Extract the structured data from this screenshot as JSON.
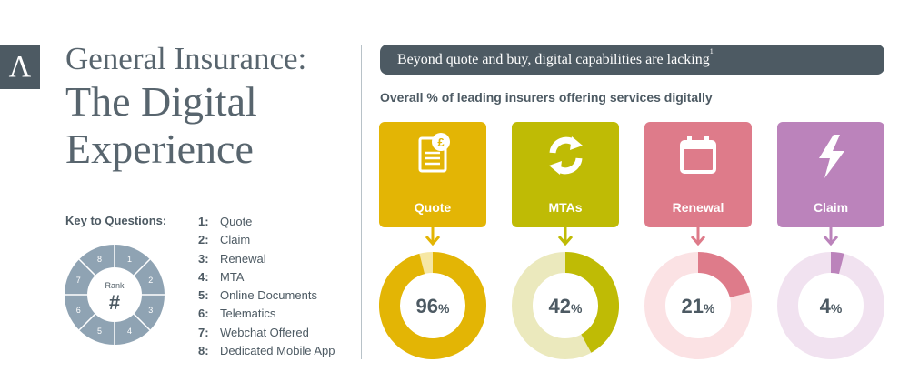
{
  "logo": {
    "glyph": "Λ"
  },
  "title": {
    "line1": "General Insurance:",
    "line2": "The Digital",
    "line3": "Experience"
  },
  "key": {
    "title": "Key to Questions:",
    "wheel": {
      "center_label": "Rank",
      "center_symbol": "#",
      "segments": [
        "1",
        "2",
        "3",
        "4",
        "5",
        "6",
        "7",
        "8"
      ],
      "color": "#8fa3b3"
    },
    "items": [
      {
        "num": "1:",
        "label": "Quote"
      },
      {
        "num": "2:",
        "label": "Claim"
      },
      {
        "num": "3:",
        "label": "Renewal"
      },
      {
        "num": "4:",
        "label": "MTA"
      },
      {
        "num": "5:",
        "label": "Online Documents"
      },
      {
        "num": "6:",
        "label": "Telematics"
      },
      {
        "num": "7:",
        "label": "Webchat Offered"
      },
      {
        "num": "8:",
        "label": "Dedicated Mobile App"
      }
    ]
  },
  "banner": {
    "text": "Beyond quote and buy, digital capabilities are lacking",
    "footnote": "1"
  },
  "chart_data": {
    "type": "pie",
    "title": "Overall % of leading insurers offering services digitally",
    "unit": "%",
    "categories": [
      "Quote",
      "MTAs",
      "Renewal",
      "Claim"
    ],
    "values": [
      96,
      42,
      21,
      4
    ],
    "colors": [
      {
        "main": "#e3b505",
        "track": "#f6e7a4",
        "icon": "document-pound-icon"
      },
      {
        "main": "#bfbb05",
        "track": "#ebe9bd",
        "icon": "refresh-icon"
      },
      {
        "main": "#de7b8a",
        "track": "#fbe2e4",
        "icon": "calendar-icon"
      },
      {
        "main": "#bb83bb",
        "track": "#f1e2f0",
        "icon": "lightning-icon"
      }
    ]
  }
}
